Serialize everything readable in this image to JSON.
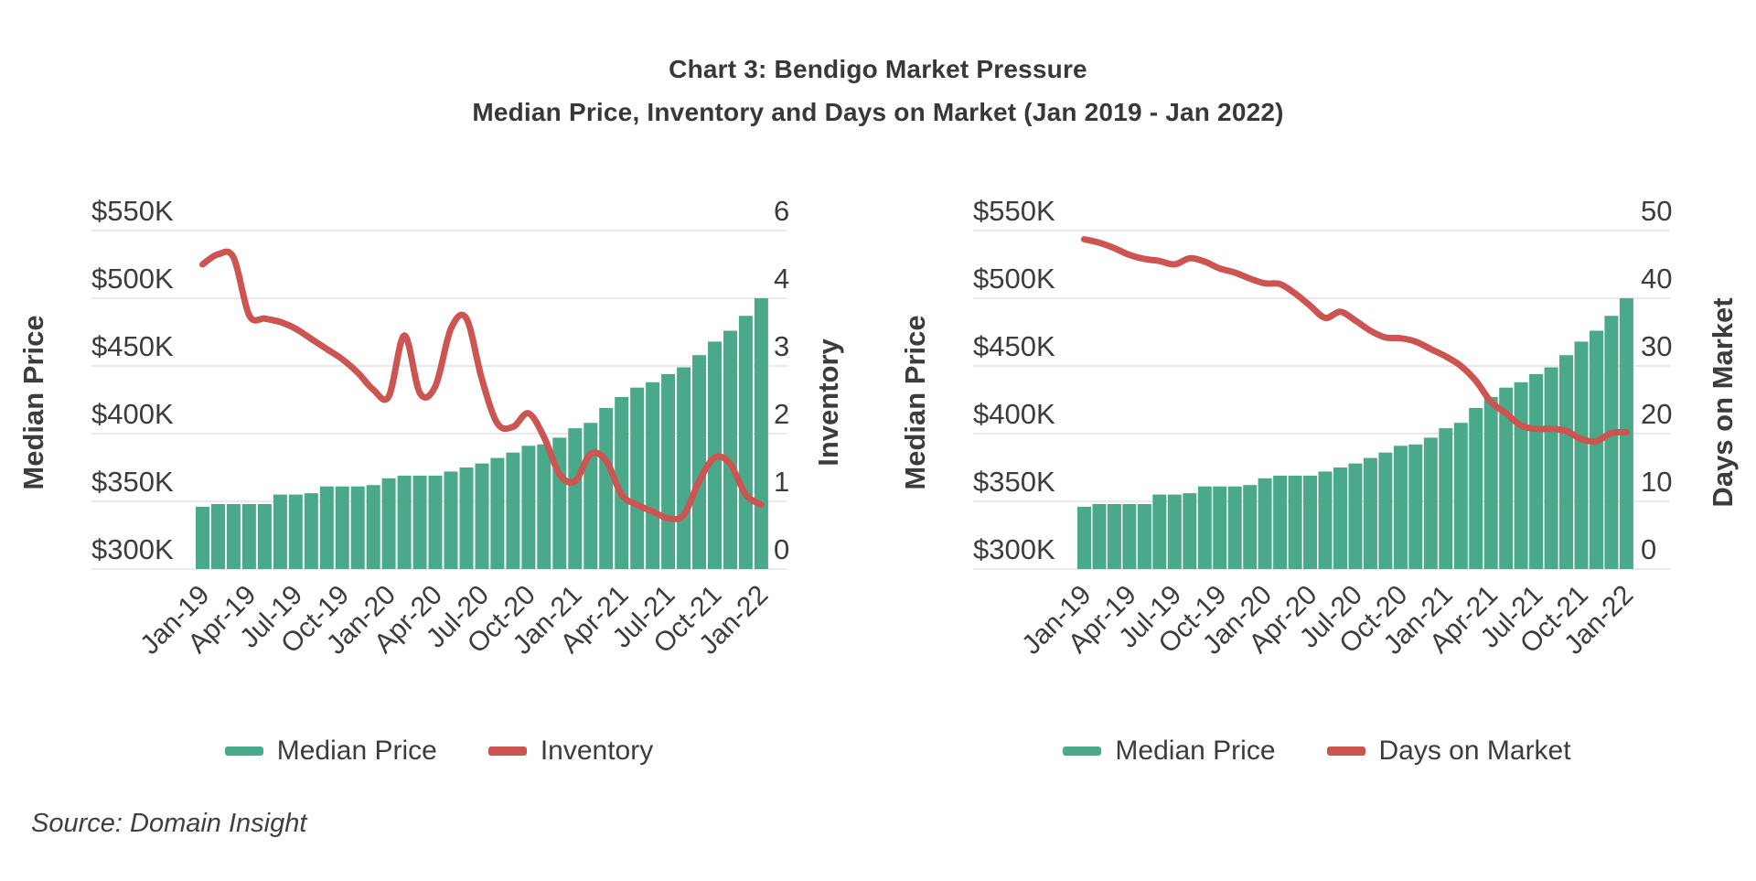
{
  "page": {
    "title_line1": "Chart 3: Bendigo Market Pressure",
    "title_line2": "Median Price, Inventory and Days on Market (Jan 2019 - Jan 2022)",
    "source": "Source: Domain Insight"
  },
  "colors": {
    "bar_green": "#4BA98B",
    "line_red": "#CC5451",
    "grid_gray": "#E9E9E9",
    "text_dark": "#3C3C3C",
    "title_dark": "#383838"
  },
  "chart_data": [
    {
      "type": "bar+line",
      "panel": "left",
      "ylabel_left": "Median Price",
      "ylabel_right": "Inventory",
      "legend": [
        "Median Price",
        "Inventory"
      ],
      "left_ticks": [
        "$550K",
        "$500K",
        "$450K",
        "$400K",
        "$350K",
        "$300K"
      ],
      "right_ticks": [
        "6",
        "4",
        "3",
        "2",
        "1",
        "0"
      ],
      "left_axis": {
        "min_k": 300,
        "tick_step_k": 50
      },
      "grid": true,
      "legend_position": "bottom",
      "x_tick_labels": [
        "Jan-19",
        "Apr-19",
        "Jul-19",
        "Oct-19",
        "Jan-20",
        "Apr-20",
        "Jul-20",
        "Oct-20",
        "Jan-21",
        "Apr-21",
        "Jul-21",
        "Oct-21",
        "Jan-22"
      ],
      "x": [
        "Jan-19",
        "Feb-19",
        "Mar-19",
        "Apr-19",
        "May-19",
        "Jun-19",
        "Jul-19",
        "Aug-19",
        "Sep-19",
        "Oct-19",
        "Nov-19",
        "Dec-19",
        "Jan-20",
        "Feb-20",
        "Mar-20",
        "Apr-20",
        "May-20",
        "Jun-20",
        "Jul-20",
        "Aug-20",
        "Sep-20",
        "Oct-20",
        "Nov-20",
        "Dec-20",
        "Jan-21",
        "Feb-21",
        "Mar-21",
        "Apr-21",
        "May-21",
        "Jun-21",
        "Jul-21",
        "Aug-21",
        "Sep-21",
        "Oct-21",
        "Nov-21",
        "Dec-21",
        "Jan-22"
      ],
      "series": [
        {
          "name": "Median Price",
          "type": "bar",
          "axis": "left",
          "unit": "AUD thousands",
          "values": [
            346,
            348,
            348,
            348,
            348,
            355,
            355,
            356,
            361,
            361,
            361,
            362,
            367,
            369,
            369,
            369,
            372,
            375,
            378,
            382,
            386,
            391,
            392,
            397,
            404,
            408,
            419,
            427,
            434,
            438,
            444,
            449,
            458,
            468,
            476,
            487,
            500
          ]
        },
        {
          "name": "Inventory",
          "type": "line",
          "axis": "right",
          "unit": "months",
          "values": [
            4.5,
            4.65,
            4.6,
            3.75,
            3.7,
            3.65,
            3.55,
            3.4,
            3.25,
            3.1,
            2.9,
            2.65,
            2.55,
            3.45,
            2.6,
            2.7,
            3.55,
            3.7,
            2.8,
            2.15,
            2.1,
            2.3,
            1.95,
            1.4,
            1.3,
            1.7,
            1.6,
            1.1,
            0.95,
            0.85,
            0.75,
            0.8,
            1.3,
            1.65,
            1.55,
            1.1,
            0.95
          ]
        }
      ]
    },
    {
      "type": "bar+line",
      "panel": "right",
      "ylabel_left": "Median Price",
      "ylabel_right": "Days on Market",
      "legend": [
        "Median Price",
        "Days on Market"
      ],
      "left_ticks": [
        "$550K",
        "$500K",
        "$450K",
        "$400K",
        "$350K",
        "$300K"
      ],
      "right_ticks": [
        "50",
        "40",
        "30",
        "20",
        "10",
        "0"
      ],
      "left_axis": {
        "min_k": 300,
        "tick_step_k": 50
      },
      "grid": true,
      "legend_position": "bottom",
      "x_tick_labels": [
        "Jan-19",
        "Apr-19",
        "Jul-19",
        "Oct-19",
        "Jan-20",
        "Apr-20",
        "Jul-20",
        "Oct-20",
        "Jan-21",
        "Apr-21",
        "Jul-21",
        "Oct-21",
        "Jan-22"
      ],
      "x": [
        "Jan-19",
        "Feb-19",
        "Mar-19",
        "Apr-19",
        "May-19",
        "Jun-19",
        "Jul-19",
        "Aug-19",
        "Sep-19",
        "Oct-19",
        "Nov-19",
        "Dec-19",
        "Jan-20",
        "Feb-20",
        "Mar-20",
        "Apr-20",
        "May-20",
        "Jun-20",
        "Jul-20",
        "Aug-20",
        "Sep-20",
        "Oct-20",
        "Nov-20",
        "Dec-20",
        "Jan-21",
        "Feb-21",
        "Mar-21",
        "Apr-21",
        "May-21",
        "Jun-21",
        "Jul-21",
        "Aug-21",
        "Sep-21",
        "Oct-21",
        "Nov-21",
        "Dec-21",
        "Jan-22"
      ],
      "series": [
        {
          "name": "Median Price",
          "type": "bar",
          "axis": "left",
          "unit": "AUD thousands",
          "values": [
            346,
            348,
            348,
            348,
            348,
            355,
            355,
            356,
            361,
            361,
            361,
            362,
            367,
            369,
            369,
            369,
            372,
            375,
            378,
            382,
            386,
            391,
            392,
            397,
            404,
            408,
            419,
            427,
            434,
            438,
            444,
            449,
            458,
            468,
            476,
            487,
            500
          ]
        },
        {
          "name": "Days on Market",
          "type": "line",
          "axis": "right",
          "unit": "days",
          "values": [
            48.7,
            48.2,
            47.4,
            46.4,
            45.8,
            45.5,
            45.0,
            45.9,
            45.4,
            44.4,
            43.8,
            42.9,
            42.2,
            42.1,
            40.7,
            38.9,
            37.1,
            38.0,
            36.7,
            35.2,
            34.2,
            34.1,
            33.6,
            32.5,
            31.4,
            30.0,
            27.8,
            24.7,
            23.0,
            21.2,
            20.7,
            20.7,
            20.4,
            19.2,
            18.9,
            20.1,
            20.2
          ]
        }
      ]
    }
  ]
}
